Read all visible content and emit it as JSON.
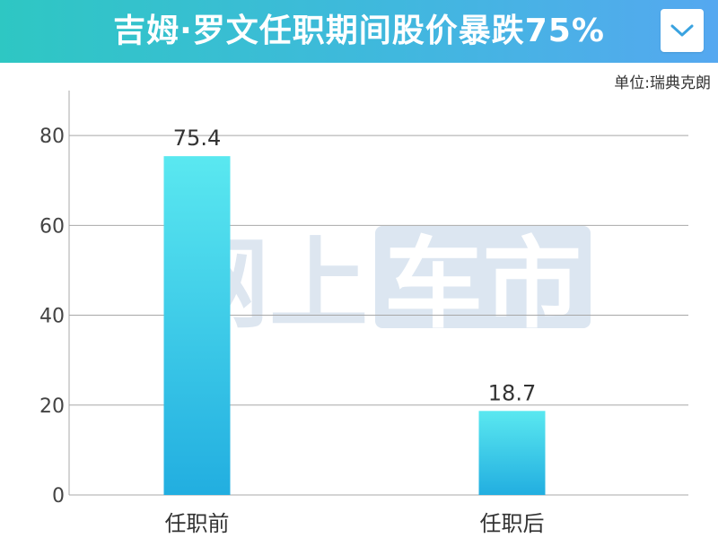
{
  "header": {
    "title": "吉姆·罗文任职期间股价暴跌75%",
    "dropdown_icon": "chevron-down-icon"
  },
  "unit_label": "单位:瑞典克朗",
  "watermark": {
    "left_text": "网上",
    "right_text": "车市"
  },
  "colors": {
    "title_gradient_start": "#2ec7c3",
    "title_gradient_end": "#55a8f0",
    "bar_top": "#5ae8f0",
    "bar_bottom": "#22aee0",
    "grid": "#a8a8a8"
  },
  "chart_data": {
    "type": "bar",
    "categories": [
      "任职前",
      "任职后"
    ],
    "values": [
      75.4,
      18.7
    ],
    "data_labels": [
      "75.4",
      "18.7"
    ],
    "yticks": [
      0,
      20,
      40,
      60,
      80
    ],
    "ylim": [
      0,
      90
    ],
    "grid": true,
    "title": "吉姆·罗文任职期间股价暴跌75%",
    "xlabel": "",
    "ylabel": ""
  }
}
